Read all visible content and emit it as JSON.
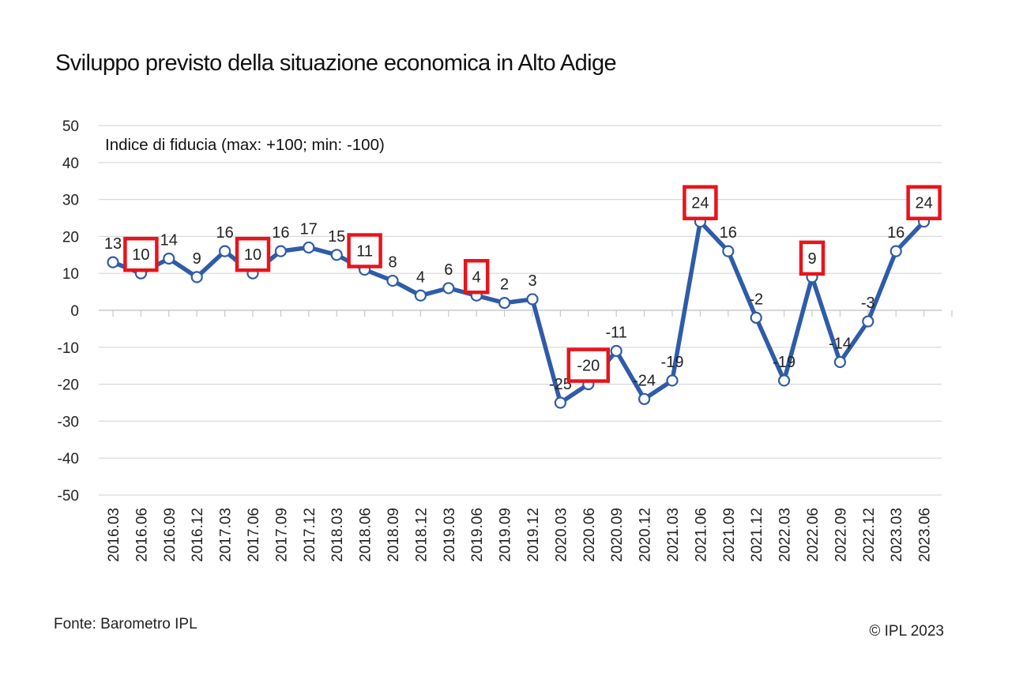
{
  "title": "Sviluppo previsto della situazione economica in Alto Adige",
  "source": "Fonte: Barometro IPL",
  "copyright": "© IPL 2023",
  "chart_data": {
    "type": "line",
    "title": "Sviluppo previsto della situazione economica in Alto Adige",
    "subtitle": "Indice di fiducia (max: +100; min: -100)",
    "xlabel": "",
    "ylabel": "",
    "ylim": [
      -50,
      50
    ],
    "yticks": [
      50,
      40,
      30,
      20,
      10,
      0,
      -10,
      -20,
      -30,
      -40,
      -50
    ],
    "grid": true,
    "categories": [
      "2016.03",
      "2016.06",
      "2016.09",
      "2016.12",
      "2017.03",
      "2017.06",
      "2017.09",
      "2017.12",
      "2018.03",
      "2018.06",
      "2018.09",
      "2018.12",
      "2019.03",
      "2019.06",
      "2019.09",
      "2019.12",
      "2020.03",
      "2020.06",
      "2020.09",
      "2020.12",
      "2021.03",
      "2021.06",
      "2021.09",
      "2021.12",
      "2022.03",
      "2022.06",
      "2022.09",
      "2022.12",
      "2023.03",
      "2023.06"
    ],
    "series": [
      {
        "values": [
          13,
          10,
          14,
          9,
          16,
          10,
          16,
          17,
          15,
          11,
          8,
          4,
          6,
          4,
          2,
          3,
          -25,
          -20,
          -11,
          -24,
          -19,
          24,
          16,
          -2,
          -19,
          9,
          -14,
          -3,
          16,
          24
        ],
        "labels": [
          "13",
          "10",
          "14",
          "9",
          "16",
          "10",
          "16",
          "17",
          "15",
          "11",
          "8",
          "4",
          "6",
          "4",
          "2",
          "3",
          "-25",
          "-20",
          "-11",
          "-24",
          "-19",
          "24",
          "16",
          "-2",
          "-19",
          "9",
          "-14",
          "-3",
          "16",
          "24"
        ],
        "color": "#2f5ca8"
      }
    ],
    "highlighted_categories": [
      "2016.06",
      "2017.06",
      "2018.06",
      "2019.06",
      "2020.06",
      "2021.06",
      "2022.06",
      "2023.06"
    ],
    "highlight_color": "#e8141b"
  }
}
